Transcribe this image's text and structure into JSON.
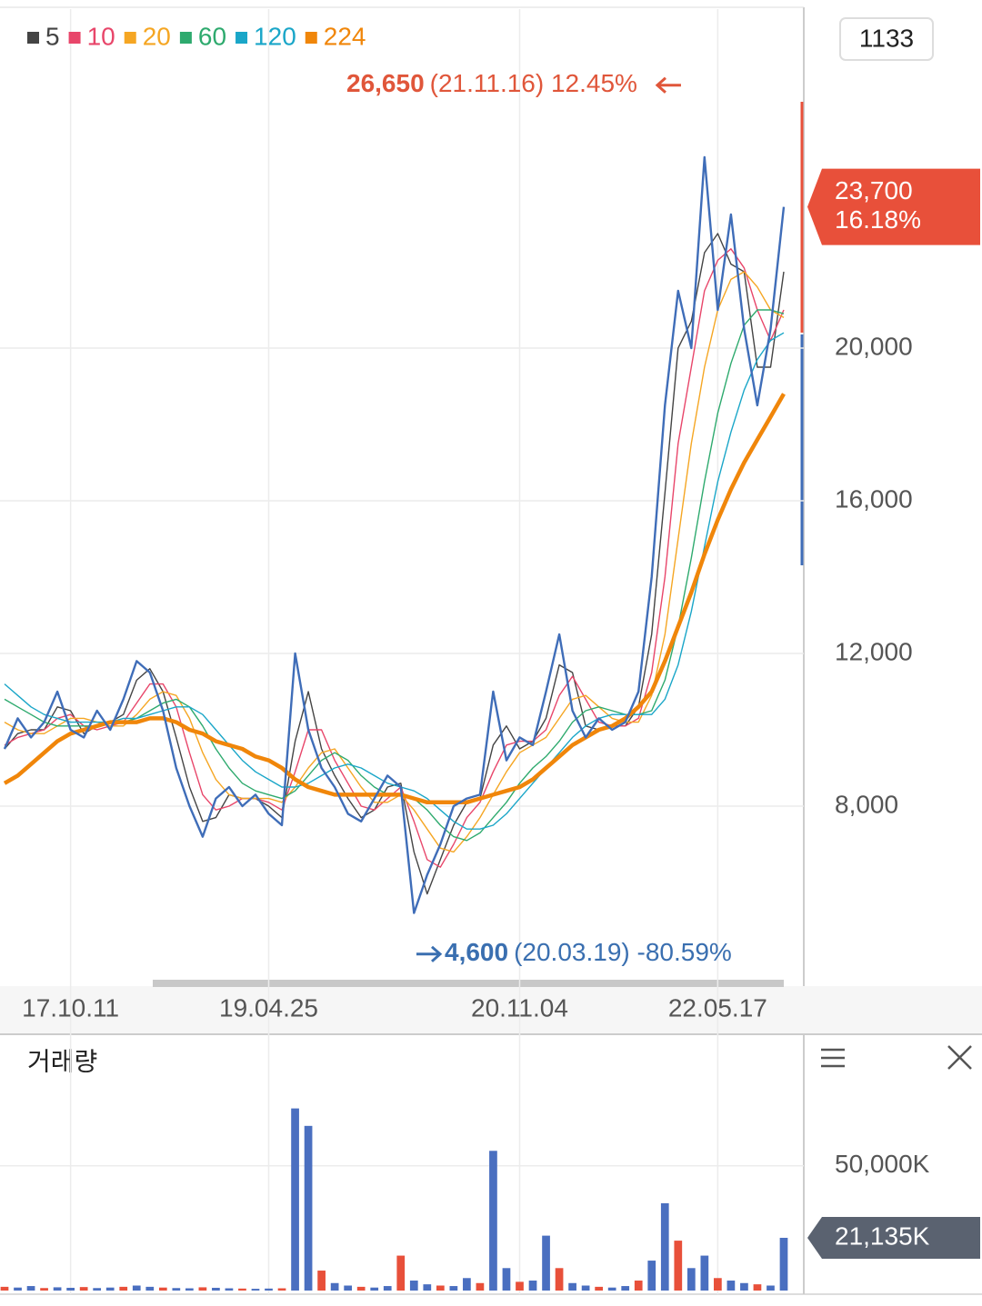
{
  "badge": "1133",
  "chart_data": [
    {
      "type": "line",
      "values": [
        9500,
        10300,
        9800,
        10200,
        11000,
        10000,
        9800,
        10500,
        10000,
        10800,
        11800,
        11500,
        10500,
        9000,
        8000,
        7200,
        8200,
        8500,
        8000,
        8300,
        7800,
        7500,
        12000,
        10000,
        9000,
        8500,
        7800,
        7600,
        8200,
        8800,
        8500,
        5200,
        6200,
        7000,
        8000,
        8200,
        8300,
        11000,
        9200,
        9800,
        9600,
        11000,
        12500,
        10500,
        9800,
        10300,
        10000,
        10200,
        11000,
        14000,
        18500,
        21500,
        20000,
        25000,
        21000,
        23500,
        20500,
        18500,
        20500,
        23700
      ],
      "color": "#3f6db8",
      "categories": [
        null,
        null,
        null,
        null,
        null,
        "17.10.11",
        null,
        null,
        null,
        null,
        null,
        null,
        null,
        null,
        null,
        null,
        null,
        null,
        null,
        null,
        "19.04.25",
        null,
        null,
        null,
        null,
        null,
        null,
        null,
        null,
        null,
        null,
        null,
        null,
        null,
        null,
        null,
        null,
        null,
        null,
        "20.11.04",
        null,
        null,
        null,
        null,
        null,
        null,
        null,
        null,
        null,
        null,
        null,
        null,
        null,
        null,
        "22.05.17",
        null,
        null,
        null,
        null,
        null
      ],
      "series": [
        {
          "name": "5",
          "color": "#444444",
          "values": [
            9500,
            9900,
            10000,
            10000,
            10600,
            10500,
            9900,
            10100,
            10200,
            10400,
            11300,
            11600,
            11000,
            9800,
            8500,
            7600,
            7700,
            8300,
            8200,
            8200,
            8000,
            7700,
            9700,
            11000,
            9500,
            8800,
            8200,
            7700,
            7900,
            8500,
            8600,
            6800,
            5700,
            6600,
            7500,
            8100,
            8200,
            9600,
            10100,
            9500,
            9700,
            10300,
            11700,
            11500,
            10100,
            10000,
            10100,
            10100,
            10600,
            12500,
            16200,
            20000,
            20700,
            22500,
            23000,
            22200,
            22000,
            19500,
            19500,
            22000
          ]
        },
        {
          "name": "10",
          "color": "#e8466a",
          "values": [
            9600,
            9800,
            9900,
            10000,
            10300,
            10400,
            10100,
            10000,
            10100,
            10200,
            10700,
            11200,
            11200,
            10600,
            9400,
            8300,
            7900,
            8000,
            8200,
            8200,
            8100,
            7900,
            8900,
            10000,
            10000,
            9200,
            8600,
            8000,
            7900,
            8200,
            8500,
            7600,
            6600,
            6400,
            7000,
            7700,
            8100,
            8900,
            9600,
            9700,
            9700,
            10000,
            10900,
            11400,
            10800,
            10200,
            10100,
            10100,
            10300,
            11500,
            14000,
            17500,
            19500,
            21500,
            22300,
            22600,
            22100,
            21000,
            20200,
            21000
          ]
        },
        {
          "name": "20",
          "color": "#f5a623",
          "values": [
            10200,
            10000,
            9900,
            9900,
            10100,
            10300,
            10300,
            10200,
            10100,
            10100,
            10400,
            10800,
            11000,
            10900,
            10300,
            9400,
            8700,
            8300,
            8200,
            8200,
            8200,
            8100,
            8500,
            9000,
            9400,
            9500,
            9000,
            8500,
            8100,
            8100,
            8300,
            7900,
            7400,
            6900,
            6800,
            7200,
            7700,
            8300,
            8900,
            9400,
            9600,
            9800,
            10300,
            10800,
            10900,
            10600,
            10300,
            10200,
            10200,
            10900,
            12500,
            15000,
            17500,
            19500,
            21000,
            21800,
            22000,
            21600,
            21000,
            20800
          ]
        },
        {
          "name": "60",
          "color": "#2eaa6e",
          "values": [
            10800,
            10600,
            10400,
            10200,
            10100,
            10100,
            10100,
            10100,
            10200,
            10200,
            10300,
            10500,
            10700,
            10800,
            10600,
            10100,
            9500,
            9000,
            8600,
            8400,
            8300,
            8200,
            8400,
            8800,
            9200,
            9400,
            9200,
            8800,
            8500,
            8300,
            8300,
            8200,
            7900,
            7500,
            7200,
            7100,
            7300,
            7700,
            8100,
            8600,
            9000,
            9300,
            9700,
            10200,
            10500,
            10600,
            10500,
            10400,
            10400,
            10500,
            11300,
            12700,
            14500,
            16500,
            18300,
            19600,
            20600,
            21000,
            21000,
            20900
          ]
        },
        {
          "name": "120",
          "color": "#1aa6c8",
          "values": [
            11200,
            10900,
            10600,
            10400,
            10300,
            10200,
            10200,
            10200,
            10200,
            10300,
            10300,
            10400,
            10500,
            10600,
            10600,
            10400,
            10000,
            9600,
            9200,
            8900,
            8700,
            8500,
            8500,
            8600,
            8800,
            9000,
            9100,
            9000,
            8800,
            8600,
            8500,
            8400,
            8200,
            7900,
            7600,
            7400,
            7400,
            7500,
            7800,
            8200,
            8600,
            9000,
            9400,
            9800,
            10100,
            10300,
            10400,
            10400,
            10400,
            10400,
            10800,
            11700,
            13100,
            14800,
            16500,
            17800,
            18900,
            19700,
            20200,
            20400
          ]
        },
        {
          "name": "224",
          "color": "#f0860a",
          "values": [
            8600,
            8800,
            9100,
            9400,
            9700,
            9900,
            10000,
            10100,
            10200,
            10200,
            10200,
            10300,
            10300,
            10200,
            10000,
            9900,
            9700,
            9600,
            9500,
            9300,
            9200,
            9000,
            8700,
            8500,
            8400,
            8300,
            8300,
            8300,
            8300,
            8300,
            8300,
            8200,
            8100,
            8100,
            8100,
            8100,
            8200,
            8300,
            8400,
            8500,
            8700,
            9000,
            9300,
            9600,
            9800,
            10000,
            10100,
            10300,
            10600,
            11000,
            11800,
            12700,
            13600,
            14600,
            15500,
            16300,
            17000,
            17600,
            18200,
            18800
          ]
        }
      ],
      "ylim": [
        3405,
        28881
      ],
      "yticks": [
        {
          "value": 8000,
          "label": "8,000"
        },
        {
          "value": 12000,
          "label": "12,000"
        },
        {
          "value": 16000,
          "label": "16,000"
        },
        {
          "value": 20000,
          "label": "20,000"
        }
      ],
      "grid": true,
      "high": {
        "value": 26650,
        "label": "26,650",
        "text": "(21.11.16) 12.45%"
      },
      "low": {
        "value": 4600,
        "label": "4,600",
        "text": "(20.03.19) -80.59%"
      },
      "last": {
        "value": 23700,
        "label": "23,700",
        "change": "16.18%"
      }
    },
    {
      "type": "bar",
      "title": "거래량",
      "values": [
        1500,
        1200,
        1800,
        1000,
        1300,
        1100,
        1400,
        1000,
        1200,
        1500,
        2000,
        1500,
        1200,
        1000,
        900,
        1300,
        1100,
        900,
        800,
        700,
        800,
        900,
        73000,
        66000,
        8000,
        3000,
        2000,
        1500,
        1200,
        1800,
        14000,
        4000,
        2500,
        2000,
        1800,
        5000,
        3000,
        56000,
        9000,
        3500,
        4000,
        22000,
        9000,
        3000,
        2000,
        1500,
        1200,
        1800,
        4000,
        12000,
        35000,
        20000,
        9000,
        14000,
        5000,
        4000,
        3000,
        2500,
        2000,
        21135
      ],
      "color": "#4a6fc0",
      "ylim": [
        0,
        102000
      ],
      "yticks": [
        {
          "value": 50000,
          "label": "50,000K"
        }
      ],
      "grid": true,
      "last": {
        "value": 21135,
        "label": "21,135K"
      }
    }
  ]
}
